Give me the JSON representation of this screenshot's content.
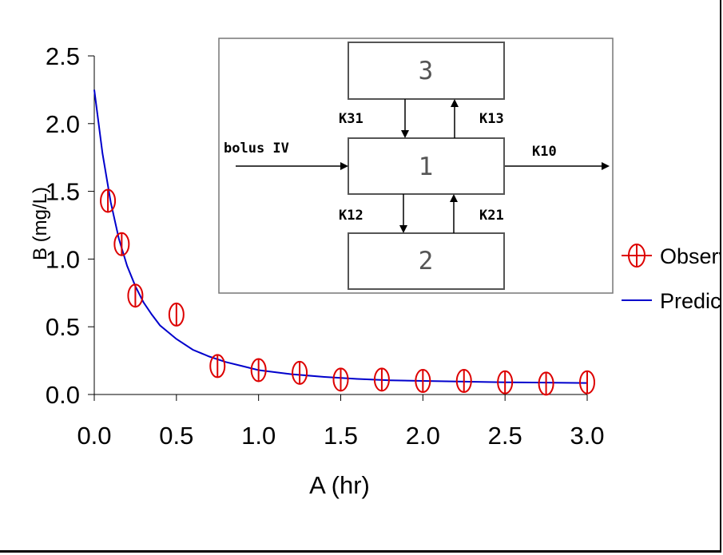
{
  "chart_data": {
    "type": "scatter",
    "xlabel": "A (hr)",
    "ylabel": "B (mg/L)",
    "xlim": [
      0,
      3.0
    ],
    "ylim": [
      0,
      2.5
    ],
    "x_ticks": [
      "0.0",
      "0.5",
      "1.0",
      "1.5",
      "2.0",
      "2.5",
      "3.0"
    ],
    "y_ticks": [
      "0.0",
      "0.5",
      "1.0",
      "1.5",
      "2.0",
      "2.5"
    ],
    "grid": false,
    "legend_position": "right",
    "series": [
      {
        "name": "Observed",
        "type": "scatter",
        "marker": "circle-with-vertical-line",
        "color": "#dd0000",
        "x": [
          0.083,
          0.167,
          0.25,
          0.5,
          0.75,
          1.0,
          1.25,
          1.5,
          1.75,
          2.0,
          2.25,
          2.5,
          2.75,
          3.0
        ],
        "y": [
          1.43,
          1.11,
          0.73,
          0.59,
          0.21,
          0.18,
          0.16,
          0.11,
          0.11,
          0.1,
          0.1,
          0.09,
          0.08,
          0.09
        ]
      },
      {
        "name": "Predicted",
        "type": "line",
        "color": "#0000cc",
        "x": [
          0,
          0.05,
          0.1,
          0.15,
          0.2,
          0.25,
          0.3,
          0.35,
          0.4,
          0.5,
          0.6,
          0.7,
          0.8,
          0.9,
          1.0,
          1.2,
          1.4,
          1.6,
          1.8,
          2.0,
          2.25,
          2.5,
          2.75,
          3.0
        ],
        "y": [
          2.25,
          1.78,
          1.42,
          1.15,
          0.95,
          0.8,
          0.68,
          0.59,
          0.51,
          0.41,
          0.33,
          0.28,
          0.24,
          0.21,
          0.18,
          0.15,
          0.13,
          0.115,
          0.105,
          0.1,
          0.095,
          0.09,
          0.088,
          0.085
        ]
      }
    ]
  },
  "legend": {
    "observed_label": "Observed",
    "predicted_label": "Predicted"
  },
  "diagram": {
    "compartments": [
      "1",
      "2",
      "3"
    ],
    "labels": {
      "input": "bolus IV",
      "k10": "K10",
      "k12": "K12",
      "k21": "K21",
      "k13": "K13",
      "k31": "K31"
    }
  },
  "colors": {
    "observed": "#dd0000",
    "predicted": "#0000cc",
    "diagram_box": "#555555"
  }
}
